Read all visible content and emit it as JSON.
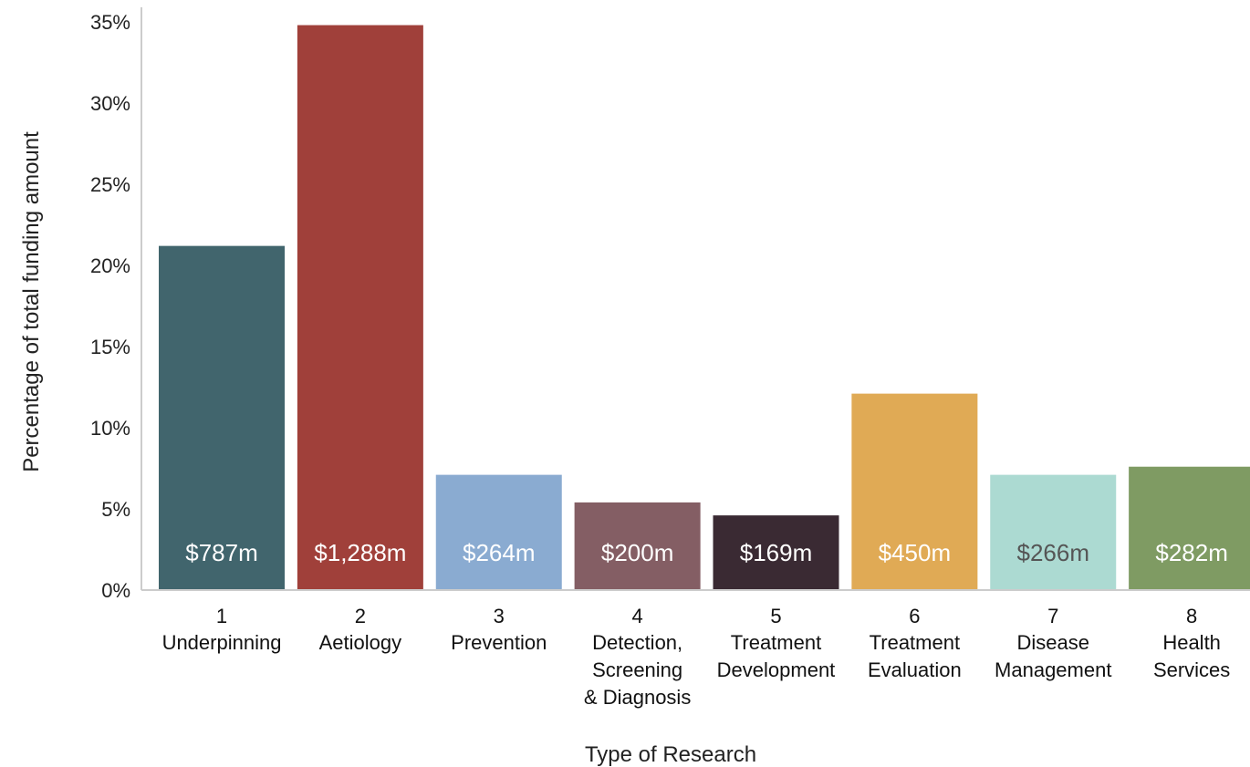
{
  "chart_data": {
    "type": "bar",
    "title": "",
    "xlabel": "Type of Research",
    "ylabel": "Percentage of total funding amount",
    "ylim": [
      0,
      35
    ],
    "yticks": [
      0,
      5,
      10,
      15,
      20,
      25,
      30,
      35
    ],
    "ytick_labels": [
      "0%",
      "5%",
      "10%",
      "15%",
      "20%",
      "25%",
      "30%",
      "35%"
    ],
    "grid": false,
    "legend": "none",
    "categories": [
      {
        "number": "1",
        "lines": [
          "Underpinning"
        ]
      },
      {
        "number": "2",
        "lines": [
          "Aetiology"
        ]
      },
      {
        "number": "3",
        "lines": [
          "Prevention"
        ]
      },
      {
        "number": "4",
        "lines": [
          "Detection,",
          "Screening",
          "& Diagnosis"
        ]
      },
      {
        "number": "5",
        "lines": [
          "Treatment",
          "Development"
        ]
      },
      {
        "number": "6",
        "lines": [
          "Treatment",
          "Evaluation"
        ]
      },
      {
        "number": "7",
        "lines": [
          "Disease",
          "Management"
        ]
      },
      {
        "number": "8",
        "lines": [
          "Health",
          "Services"
        ]
      }
    ],
    "values": [
      21.2,
      34.8,
      7.1,
      5.4,
      4.6,
      12.1,
      7.1,
      7.6
    ],
    "value_labels": [
      "$787m",
      "$1,288m",
      "$264m",
      "$200m",
      "$169m",
      "$450m",
      "$266m",
      "$282m"
    ],
    "colors": [
      "#41656d",
      "#a0403a",
      "#8aabd1",
      "#845e64",
      "#3a2a33",
      "#e0aa55",
      "#acdad2",
      "#7f9b63"
    ],
    "label_colors": [
      "#ffffff",
      "#ffffff",
      "#ffffff",
      "#ffffff",
      "#ffffff",
      "#ffffff",
      "#555555",
      "#ffffff"
    ]
  }
}
